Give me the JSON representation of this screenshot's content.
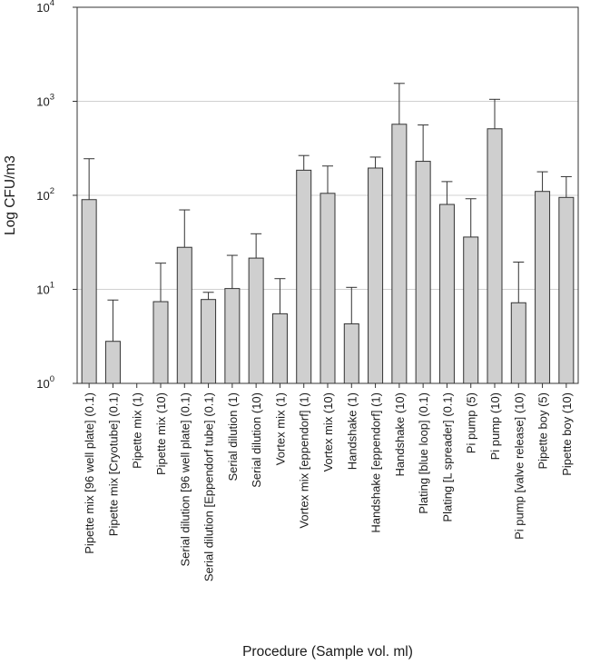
{
  "chart_data": {
    "type": "bar",
    "xlabel": "Procedure (Sample vol. ml)",
    "ylabel": "Log CFU/m3",
    "yscale": "log",
    "ylim": [
      1,
      10000
    ],
    "grid": "horizontal",
    "bar_color": "#cfcfcf",
    "yticks": [
      {
        "base": "10",
        "exp": "0",
        "value": 1
      },
      {
        "base": "10",
        "exp": "1",
        "value": 10
      },
      {
        "base": "10",
        "exp": "2",
        "value": 100
      },
      {
        "base": "10",
        "exp": "3",
        "value": 1000
      },
      {
        "base": "10",
        "exp": "4",
        "value": 10000
      }
    ],
    "categories": [
      "Pipette mix [96 well plate] (0.1)",
      "Pipette mix [Cryotube] (0.1)",
      "Pipette mix (1)",
      "Pipette mix (10)",
      "Serial dilution [96 well plate] (0.1)",
      "Serial dilution [Eppendorf tube] (0.1)",
      "Serial dilution (1)",
      "Serial dilution (10)",
      "Vortex mix (1)",
      "Vortex mix [eppendorf] (1)",
      "Vortex mix (10)",
      "Handshake (1)",
      "Handshake [eppendorf] (1)",
      "Handshake (10)",
      "Plating [blue loop] (0.1)",
      "Plating [L spreader] (0.1)",
      "Pi pump (5)",
      "Pi pump (10)",
      "Pi pump [valve release] (10)",
      "Pipette boy (5)",
      "Pipette boy (10)"
    ],
    "values": [
      90,
      2.8,
      null,
      7.4,
      28,
      7.8,
      10.2,
      21.5,
      5.5,
      185,
      105,
      4.3,
      195,
      570,
      230,
      80,
      36,
      510,
      7.2,
      110,
      95
    ],
    "error_upper": [
      245,
      7.7,
      null,
      19,
      70,
      9.3,
      23,
      39,
      13,
      265,
      205,
      10.5,
      255,
      1550,
      560,
      140,
      92,
      1050,
      19.5,
      178,
      158
    ]
  }
}
